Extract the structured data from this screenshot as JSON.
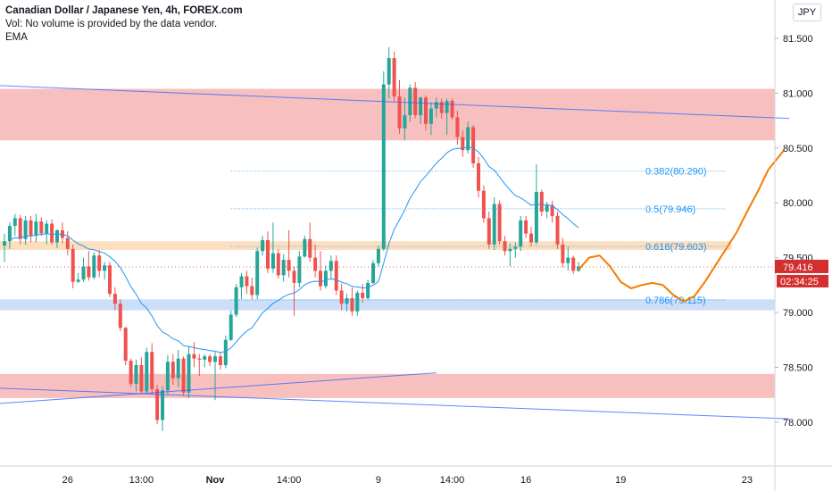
{
  "header": {
    "title": "Canadian Dollar / Japanese Yen, 4h, FOREX.com",
    "volume_note": "Vol: No volume is provided by the data vendor.",
    "indicator": "EMA"
  },
  "currency_button": "JPY",
  "colors": {
    "up": "#26a69a",
    "down": "#ef5350",
    "ema": "#2196f3",
    "forecast": "#f57c00",
    "resistance_zone": "#f8bcbc",
    "support_zone": "#c8daf8",
    "fib_zone": "#fbdcb9",
    "trendline": "#2962ff",
    "price_label_bg": "#d32f2f",
    "fib_text": "#2196f3"
  },
  "chart_data": {
    "type": "candlestick",
    "title": "Canadian Dollar / Japanese Yen, 4h, FOREX.com",
    "y_axis": {
      "ticks": [
        "81.500",
        "81.000",
        "80.500",
        "80.000",
        "79.500",
        "79.000",
        "78.500",
        "78.000"
      ],
      "tick_values": [
        81.5,
        81.0,
        80.5,
        80.0,
        79.5,
        79.0,
        78.5,
        78.0
      ],
      "range": [
        77.6,
        81.85
      ]
    },
    "x_axis": {
      "ticks": [
        "26",
        "13:00",
        "Nov",
        "14:00",
        "9",
        "14:00",
        "16",
        "19",
        "23"
      ],
      "tick_index": [
        12,
        26,
        40,
        54,
        71,
        85,
        99,
        117,
        141
      ]
    },
    "last_price": "79.416",
    "countdown": "02:34:25",
    "zones": [
      {
        "name": "resistance",
        "from": 80.57,
        "to": 81.04,
        "kind": "resistance"
      },
      {
        "name": "fib-618",
        "from": 79.57,
        "to": 79.65,
        "kind": "fib"
      },
      {
        "name": "support",
        "from": 79.02,
        "to": 79.12,
        "kind": "support"
      },
      {
        "name": "demand",
        "from": 78.22,
        "to": 78.44,
        "kind": "resistance"
      }
    ],
    "fib_levels": [
      {
        "label": "0.382(80.290)",
        "value": 80.29
      },
      {
        "label": "0.5(79.946)",
        "value": 79.946
      },
      {
        "label": "0.618(79.603)",
        "value": 79.603
      },
      {
        "label": "0.786(79.115)",
        "value": 79.115
      }
    ],
    "trendlines": [
      {
        "start": [
          -1,
          81.07
        ],
        "end": [
          149,
          80.77
        ]
      },
      {
        "start": [
          -1,
          78.17
        ],
        "end": [
          82,
          78.45
        ]
      },
      {
        "start": [
          -1,
          78.31
        ],
        "end": [
          149,
          78.03
        ]
      }
    ],
    "forecast": [
      [
        109,
        79.39
      ],
      [
        111,
        79.5
      ],
      [
        113,
        79.52
      ],
      [
        115,
        79.42
      ],
      [
        117,
        79.28
      ],
      [
        119,
        79.22
      ],
      [
        121,
        79.25
      ],
      [
        123,
        79.27
      ],
      [
        125,
        79.25
      ],
      [
        127,
        79.16
      ],
      [
        129,
        79.1
      ],
      [
        131,
        79.15
      ],
      [
        133,
        79.28
      ],
      [
        135,
        79.43
      ],
      [
        137,
        79.58
      ],
      [
        139,
        79.73
      ],
      [
        141,
        79.92
      ],
      [
        143,
        80.1
      ],
      [
        145,
        80.3
      ],
      [
        148,
        80.48
      ]
    ],
    "series": [
      {
        "name": "CADJPY",
        "candles": [
          [
            79.61,
            79.72,
            79.46,
            79.65
          ],
          [
            79.65,
            79.82,
            79.58,
            79.79
          ],
          [
            79.79,
            79.9,
            79.7,
            79.86
          ],
          [
            79.86,
            79.89,
            79.62,
            79.67
          ],
          [
            79.67,
            79.88,
            79.62,
            79.84
          ],
          [
            79.84,
            79.88,
            79.64,
            79.7
          ],
          [
            79.7,
            79.9,
            79.64,
            79.83
          ],
          [
            79.83,
            79.87,
            79.7,
            79.72
          ],
          [
            79.72,
            79.84,
            79.62,
            79.81
          ],
          [
            79.81,
            79.85,
            79.62,
            79.64
          ],
          [
            79.64,
            79.76,
            79.59,
            79.75
          ],
          [
            79.75,
            79.82,
            79.63,
            79.68
          ],
          [
            79.68,
            79.74,
            79.52,
            79.58
          ],
          [
            79.58,
            79.62,
            79.22,
            79.28
          ],
          [
            79.28,
            79.36,
            79.27,
            79.3
          ],
          [
            79.3,
            79.5,
            79.28,
            79.42
          ],
          [
            79.42,
            79.56,
            79.29,
            79.32
          ],
          [
            79.32,
            79.55,
            79.3,
            79.52
          ],
          [
            79.52,
            79.57,
            79.32,
            79.38
          ],
          [
            79.38,
            79.46,
            79.3,
            79.43
          ],
          [
            79.43,
            79.46,
            79.14,
            79.17
          ],
          [
            79.17,
            79.23,
            79.02,
            79.08
          ],
          [
            79.08,
            79.12,
            78.83,
            78.86
          ],
          [
            78.86,
            78.87,
            78.52,
            78.56
          ],
          [
            78.56,
            78.58,
            78.32,
            78.35
          ],
          [
            78.35,
            78.57,
            78.28,
            78.52
          ],
          [
            78.52,
            78.59,
            78.26,
            78.28
          ],
          [
            78.28,
            78.68,
            78.26,
            78.64
          ],
          [
            78.64,
            78.72,
            78.25,
            78.3
          ],
          [
            78.3,
            78.34,
            77.98,
            78.02
          ],
          [
            78.02,
            78.33,
            77.92,
            78.29
          ],
          [
            78.29,
            78.61,
            78.25,
            78.55
          ],
          [
            78.55,
            78.62,
            78.34,
            78.4
          ],
          [
            78.4,
            78.66,
            78.32,
            78.58
          ],
          [
            78.58,
            78.6,
            78.24,
            78.27
          ],
          [
            78.27,
            78.69,
            78.22,
            78.62
          ],
          [
            78.62,
            78.73,
            78.5,
            78.58
          ],
          [
            78.58,
            78.62,
            78.42,
            78.57
          ],
          [
            78.57,
            78.62,
            78.5,
            78.6
          ],
          [
            78.6,
            78.62,
            78.51,
            78.55
          ],
          [
            78.55,
            78.64,
            78.2,
            78.6
          ],
          [
            78.6,
            78.64,
            78.48,
            78.52
          ],
          [
            78.52,
            78.79,
            78.49,
            78.75
          ],
          [
            78.75,
            79.02,
            78.74,
            78.98
          ],
          [
            78.98,
            79.26,
            78.96,
            79.23
          ],
          [
            79.23,
            79.36,
            79.12,
            79.33
          ],
          [
            79.33,
            79.38,
            79.17,
            79.24
          ],
          [
            79.24,
            79.32,
            79.12,
            79.16
          ],
          [
            79.16,
            79.59,
            79.12,
            79.56
          ],
          [
            79.56,
            79.7,
            79.52,
            79.66
          ],
          [
            79.66,
            79.74,
            79.36,
            79.4
          ],
          [
            79.4,
            79.82,
            79.36,
            79.54
          ],
          [
            79.54,
            79.58,
            79.31,
            79.34
          ],
          [
            79.34,
            79.53,
            79.28,
            79.48
          ],
          [
            79.48,
            79.75,
            79.32,
            79.38
          ],
          [
            79.38,
            79.42,
            78.97,
            79.27
          ],
          [
            79.27,
            79.56,
            79.23,
            79.51
          ],
          [
            79.51,
            79.7,
            79.5,
            79.67
          ],
          [
            79.67,
            79.82,
            79.46,
            79.5
          ],
          [
            79.5,
            79.62,
            79.32,
            79.38
          ],
          [
            79.38,
            79.56,
            79.2,
            79.24
          ],
          [
            79.24,
            79.43,
            79.22,
            79.38
          ],
          [
            79.38,
            79.52,
            79.3,
            79.47
          ],
          [
            79.47,
            79.52,
            79.16,
            79.2
          ],
          [
            79.2,
            79.26,
            79.02,
            79.08
          ],
          [
            79.08,
            79.17,
            79.01,
            79.13
          ],
          [
            79.13,
            79.23,
            78.97,
            79.01
          ],
          [
            79.01,
            79.2,
            78.97,
            79.18
          ],
          [
            79.18,
            79.26,
            79.09,
            79.13
          ],
          [
            79.13,
            79.3,
            79.11,
            79.27
          ],
          [
            79.27,
            79.48,
            79.26,
            79.45
          ],
          [
            79.45,
            79.61,
            79.42,
            79.58
          ],
          [
            79.58,
            81.2,
            79.56,
            81.08
          ],
          [
            81.08,
            81.42,
            80.95,
            81.32
          ],
          [
            81.32,
            81.38,
            80.92,
            80.97
          ],
          [
            80.97,
            81.12,
            80.63,
            80.68
          ],
          [
            80.68,
            80.96,
            80.57,
            80.8
          ],
          [
            80.8,
            81.08,
            80.74,
            81.05
          ],
          [
            81.05,
            81.1,
            80.77,
            80.8
          ],
          [
            80.8,
            80.97,
            80.72,
            80.96
          ],
          [
            80.96,
            80.98,
            80.66,
            80.72
          ],
          [
            80.72,
            80.92,
            80.62,
            80.86
          ],
          [
            80.86,
            80.96,
            80.78,
            80.92
          ],
          [
            80.92,
            80.95,
            80.77,
            80.82
          ],
          [
            80.82,
            80.95,
            80.62,
            80.93
          ],
          [
            80.93,
            80.95,
            80.76,
            80.78
          ],
          [
            80.78,
            80.84,
            80.53,
            80.6
          ],
          [
            80.6,
            80.66,
            80.42,
            80.48
          ],
          [
            80.48,
            80.74,
            80.45,
            80.69
          ],
          [
            80.69,
            80.71,
            80.32,
            80.36
          ],
          [
            80.36,
            80.42,
            80.05,
            80.11
          ],
          [
            80.11,
            80.16,
            79.82,
            79.86
          ],
          [
            79.86,
            79.92,
            79.58,
            79.62
          ],
          [
            79.62,
            80.05,
            79.57,
            79.99
          ],
          [
            79.99,
            80.02,
            79.62,
            79.65
          ],
          [
            79.65,
            79.7,
            79.52,
            79.56
          ],
          [
            79.56,
            79.63,
            79.42,
            79.58
          ],
          [
            79.58,
            79.64,
            79.5,
            79.6
          ],
          [
            79.6,
            79.88,
            79.56,
            79.84
          ],
          [
            79.84,
            79.88,
            79.68,
            79.72
          ],
          [
            79.72,
            79.78,
            79.6,
            79.64
          ],
          [
            79.64,
            80.35,
            79.62,
            80.1
          ],
          [
            80.1,
            80.12,
            79.88,
            79.92
          ],
          [
            79.92,
            80.01,
            79.86,
            79.98
          ],
          [
            79.98,
            80.02,
            79.82,
            79.88
          ],
          [
            79.88,
            79.92,
            79.58,
            79.62
          ],
          [
            79.62,
            79.68,
            79.41,
            79.45
          ],
          [
            79.45,
            79.6,
            79.38,
            79.5
          ],
          [
            79.5,
            79.52,
            79.35,
            79.38
          ],
          [
            79.38,
            79.46,
            79.37,
            79.42
          ]
        ]
      }
    ]
  }
}
